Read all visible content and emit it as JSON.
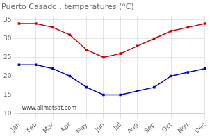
{
  "chart_data": {
    "type": "line",
    "title": "Puerto Casado : temperatures (°C)",
    "categories": [
      "Jan",
      "Feb",
      "Mar",
      "Apr",
      "May",
      "Jun",
      "Jul",
      "Aug",
      "Sep",
      "Oct",
      "Nov",
      "Dec"
    ],
    "series": [
      {
        "color": "#cc0000",
        "values": [
          34,
          34,
          33,
          31,
          27,
          25,
          26,
          28,
          30,
          32,
          33,
          34
        ]
      },
      {
        "color": "#0000cc",
        "values": [
          23,
          23,
          22,
          20,
          17,
          15,
          15,
          16,
          17,
          20,
          21,
          22
        ]
      }
    ],
    "ylim": [
      10,
      36
    ],
    "yticks": [
      10,
      15,
      20,
      25,
      30,
      35
    ],
    "grid": true,
    "marker": "square",
    "annotations": [
      {
        "text": "www.allmetsat.com"
      }
    ]
  }
}
